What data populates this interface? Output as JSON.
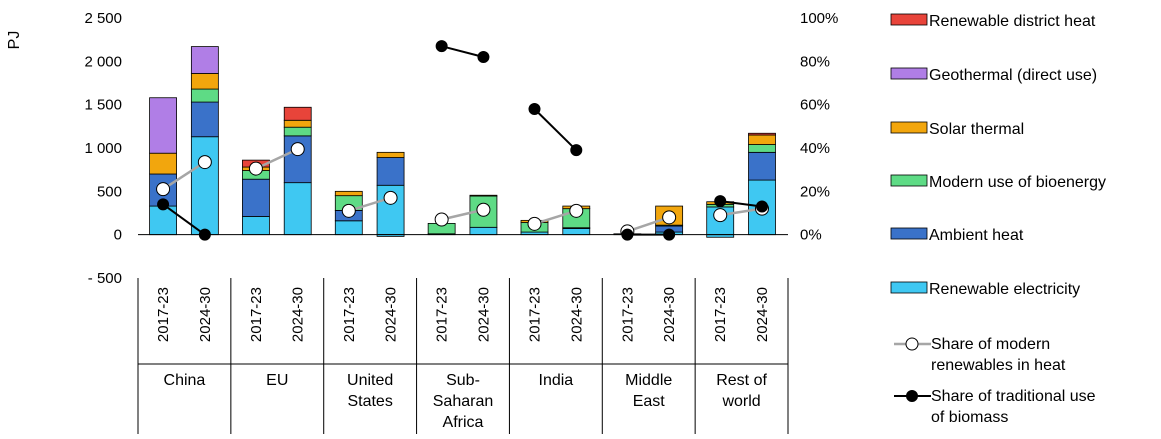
{
  "chart_data": {
    "type": "bar",
    "ylabel": "PJ",
    "yticks": [
      "2 500",
      "2 000",
      "1 500",
      "1 000",
      "500",
      "0",
      "- 500"
    ],
    "ylim": [
      -500,
      2500
    ],
    "y2ticks": [
      "100%",
      "80%",
      "60%",
      "40%",
      "20%",
      "0%"
    ],
    "y2lim": [
      0,
      1
    ],
    "grid": false,
    "legend_position": "right",
    "groups": [
      "China",
      "EU",
      "United States",
      "Sub-Saharan Africa",
      "India",
      "Middle East",
      "Rest of world"
    ],
    "group_label_lines": [
      [
        "China"
      ],
      [
        "EU"
      ],
      [
        "United",
        "States"
      ],
      [
        "Sub-",
        "Saharan",
        "Africa"
      ],
      [
        "India"
      ],
      [
        "Middle",
        "East"
      ],
      [
        "Rest of",
        "world"
      ]
    ],
    "periods": [
      "2017-23",
      "2024-30"
    ],
    "series": [
      {
        "name": "Renewable electricity",
        "color": "#3FC8F2",
        "values": [
          330,
          1130,
          210,
          600,
          160,
          570,
          10,
          85,
          30,
          70,
          0,
          30,
          320,
          630
        ]
      },
      {
        "name": "Ambient heat",
        "color": "#3A72C9",
        "values": [
          370,
          400,
          430,
          540,
          120,
          320,
          0,
          0,
          0,
          10,
          0,
          70,
          0,
          320
        ]
      },
      {
        "name": "Modern use of bioenergy",
        "color": "#5EDB85",
        "values": [
          0,
          150,
          100,
          100,
          170,
          0,
          120,
          360,
          110,
          220,
          10,
          10,
          30,
          90
        ]
      },
      {
        "name": "Solar thermal",
        "color": "#F2A60D",
        "values": [
          240,
          180,
          40,
          80,
          50,
          60,
          0,
          10,
          25,
          30,
          0,
          220,
          30,
          110
        ]
      },
      {
        "name": "Geothermal (direct use)",
        "color": "#B07EE6",
        "values": [
          640,
          310,
          0,
          0,
          0,
          0,
          0,
          0,
          0,
          0,
          0,
          0,
          0,
          0
        ]
      },
      {
        "name": "Renewable district heat",
        "color": "#E8443A",
        "values": [
          0,
          0,
          80,
          150,
          0,
          0,
          0,
          0,
          0,
          0,
          0,
          0,
          0,
          20
        ]
      }
    ],
    "negatives": [
      0,
      0,
      0,
      0,
      0,
      -20,
      0,
      0,
      0,
      0,
      0,
      0,
      -30,
      0
    ],
    "lines": [
      {
        "name": "Share of modern renewables in heat",
        "line_color": "#A6A6A6",
        "marker": "open-circle",
        "values": [
          0.21,
          0.335,
          0.305,
          0.395,
          0.11,
          0.17,
          0.07,
          0.115,
          0.05,
          0.11,
          0.015,
          0.08,
          0.09,
          0.12
        ]
      },
      {
        "name": "Share of traditional use of biomass",
        "line_color": "#000000",
        "marker": "filled-circle",
        "values": [
          0.14,
          0.0,
          null,
          null,
          null,
          null,
          0.87,
          0.82,
          0.58,
          0.39,
          0.0,
          0.0,
          0.155,
          0.13
        ]
      }
    ],
    "legend": [
      {
        "label": "Renewable district heat",
        "kind": "box",
        "color": "#E8443A"
      },
      {
        "label": "Geothermal (direct use)",
        "kind": "box",
        "color": "#B07EE6"
      },
      {
        "label": "Solar thermal",
        "kind": "box",
        "color": "#F2A60D"
      },
      {
        "label": "Modern use of bioenergy",
        "kind": "box",
        "color": "#5EDB85"
      },
      {
        "label": "Ambient heat",
        "kind": "box",
        "color": "#3A72C9"
      },
      {
        "label": "Renewable electricity",
        "kind": "box",
        "color": "#3FC8F2"
      },
      {
        "label": "Share of modern renewables in heat",
        "label_lines": [
          "Share of modern",
          "renewables in heat"
        ],
        "kind": "open",
        "color": "#A6A6A6"
      },
      {
        "label": "Share of traditional use of biomass",
        "label_lines": [
          "Share of traditional use",
          "of biomass"
        ],
        "kind": "filled",
        "color": "#000000"
      }
    ]
  }
}
